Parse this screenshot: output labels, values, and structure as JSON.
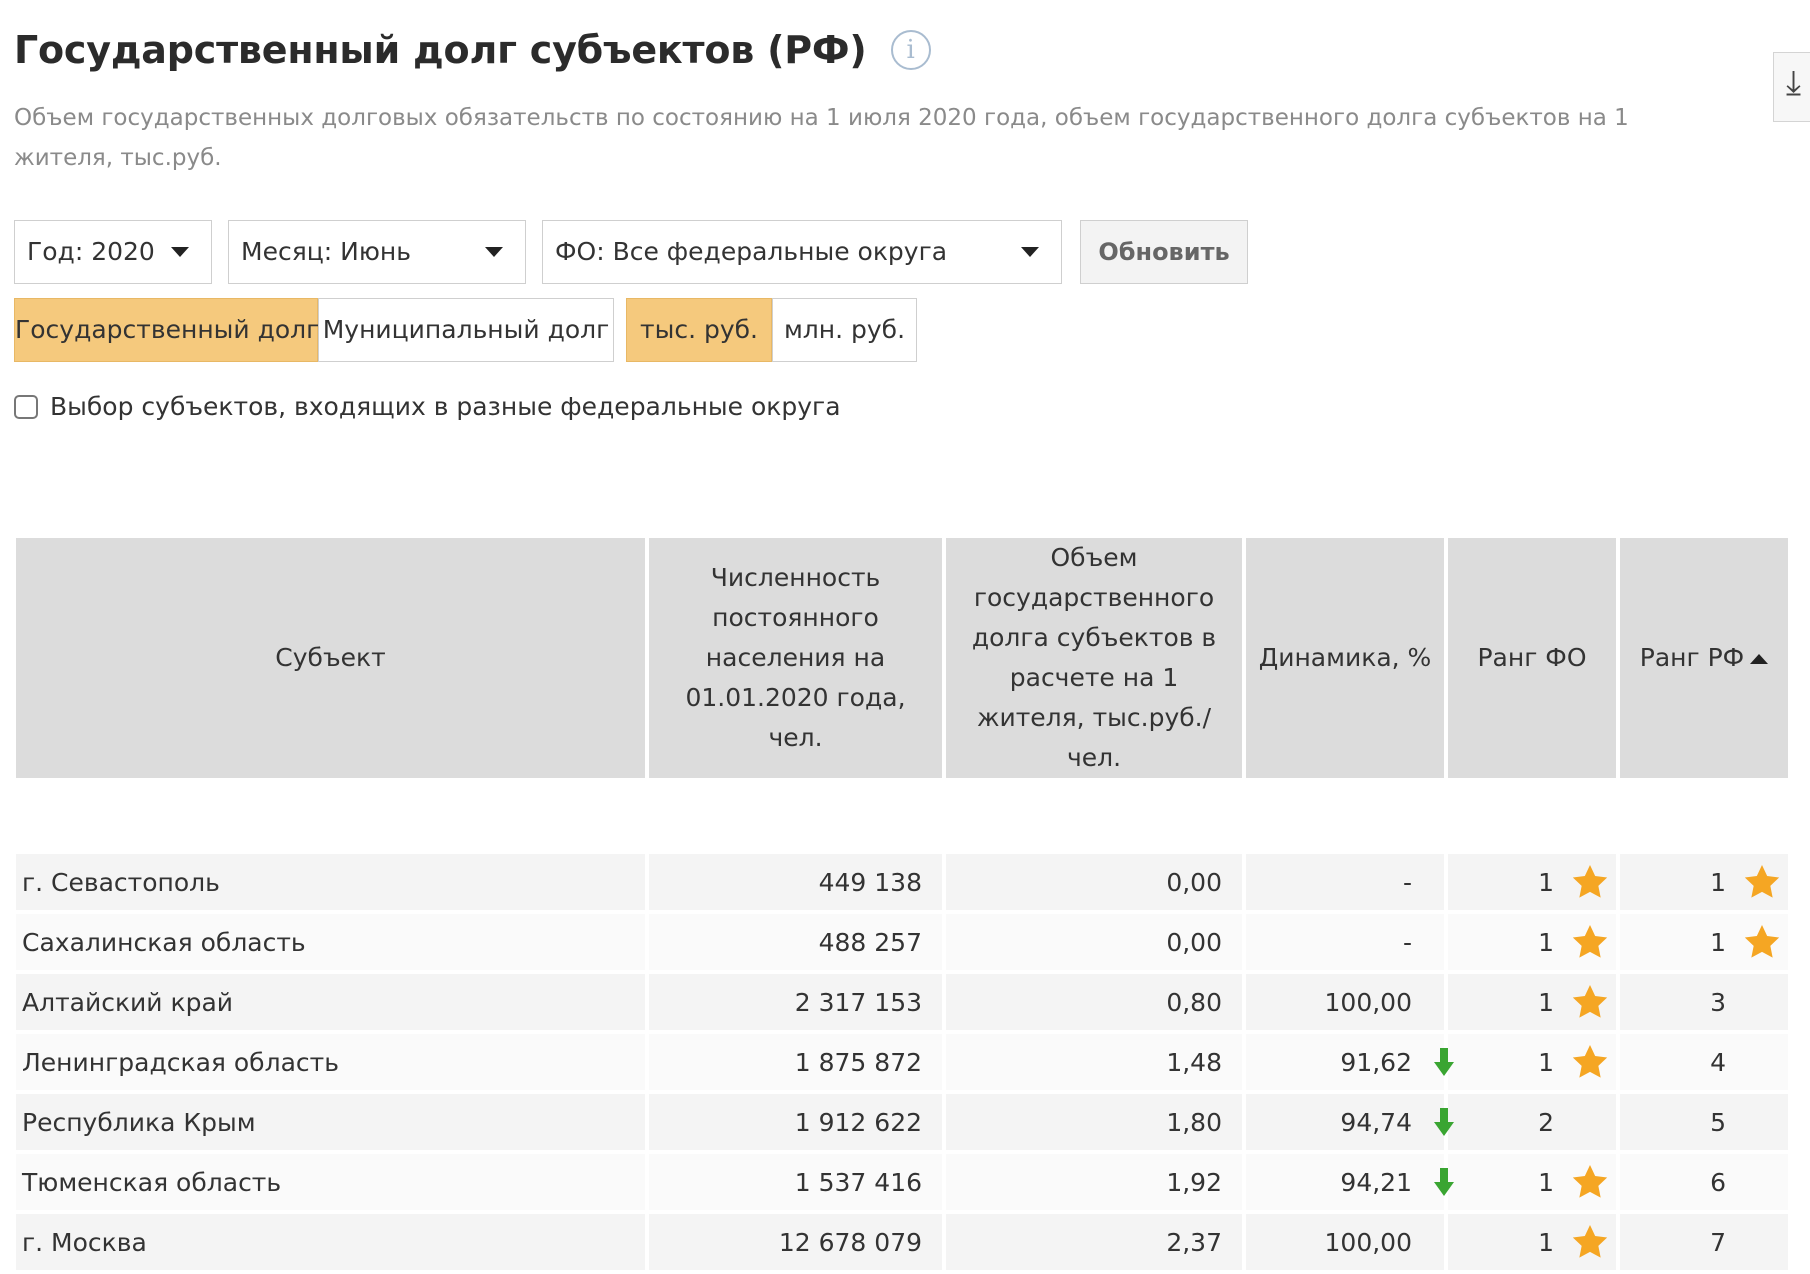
{
  "header": {
    "title": "Государственный долг субъектов (РФ)",
    "info_icon": "info-icon",
    "subtitle": "Объем государственных долговых обязательств по состоянию на 1 июля 2020 года, объем государственного долга субъектов на 1 жителя, тыс.руб.",
    "download_icon": "download-icon",
    "download_glyph": "⤓"
  },
  "filters": {
    "year": "Год: 2020",
    "month": "Месяц: Июнь",
    "district": "ФО: Все федеральные округа",
    "refresh_label": "Обновить"
  },
  "toggles": {
    "debt_type": [
      {
        "label": "Государственный долг",
        "active": true
      },
      {
        "label": "Муниципальный долг",
        "active": false
      }
    ],
    "units": [
      {
        "label": "тыс. руб.",
        "active": true
      },
      {
        "label": "млн. руб.",
        "active": false
      }
    ]
  },
  "checkbox": {
    "label": "Выбор субъектов, входящих в разные федеральные округа",
    "checked": false
  },
  "table": {
    "columns": [
      "Субъект",
      "Численность постоянного населения на 01.01.2020 года, чел.",
      "Объем государственного долга субъектов в расчете на 1 жителя, тыс.руб./чел.",
      "Динамика, %",
      "Ранг ФО",
      "Ранг РФ"
    ],
    "sort_column": "Ранг РФ",
    "sort_direction": "asc",
    "colors": {
      "star": "#f5a623",
      "arrow_down": "#3aa532",
      "header_bg": "#dcdcdc",
      "active_toggle": "#f5c97d"
    },
    "rows": [
      {
        "subject": "г. Севастополь",
        "population": "449 138",
        "debt_per_capita": "0,00",
        "dynamics": "-",
        "dyn_arrow": false,
        "rank_fo": "1",
        "rank_fo_star": true,
        "rank_rf": "1",
        "rank_rf_star": true
      },
      {
        "subject": "Сахалинская область",
        "population": "488 257",
        "debt_per_capita": "0,00",
        "dynamics": "-",
        "dyn_arrow": false,
        "rank_fo": "1",
        "rank_fo_star": true,
        "rank_rf": "1",
        "rank_rf_star": true
      },
      {
        "subject": "Алтайский край",
        "population": "2 317 153",
        "debt_per_capita": "0,80",
        "dynamics": "100,00",
        "dyn_arrow": false,
        "rank_fo": "1",
        "rank_fo_star": true,
        "rank_rf": "3",
        "rank_rf_star": false
      },
      {
        "subject": "Ленинградская область",
        "population": "1 875 872",
        "debt_per_capita": "1,48",
        "dynamics": "91,62",
        "dyn_arrow": true,
        "rank_fo": "1",
        "rank_fo_star": true,
        "rank_rf": "4",
        "rank_rf_star": false
      },
      {
        "subject": "Республика Крым",
        "population": "1 912 622",
        "debt_per_capita": "1,80",
        "dynamics": "94,74",
        "dyn_arrow": true,
        "rank_fo": "2",
        "rank_fo_star": false,
        "rank_rf": "5",
        "rank_rf_star": false
      },
      {
        "subject": "Тюменская область",
        "population": "1 537 416",
        "debt_per_capita": "1,92",
        "dynamics": "94,21",
        "dyn_arrow": true,
        "rank_fo": "1",
        "rank_fo_star": true,
        "rank_rf": "6",
        "rank_rf_star": false
      },
      {
        "subject": "г. Москва",
        "population": "12 678 079",
        "debt_per_capita": "2,37",
        "dynamics": "100,00",
        "dyn_arrow": false,
        "rank_fo": "1",
        "rank_fo_star": true,
        "rank_rf": "7",
        "rank_rf_star": false
      }
    ]
  }
}
